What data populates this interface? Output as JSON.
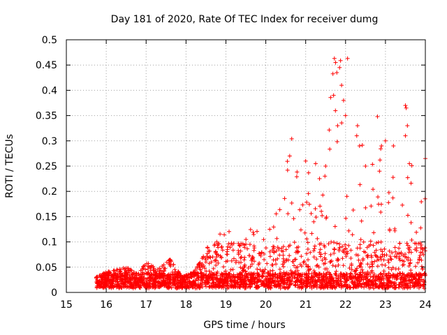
{
  "chart_data": {
    "type": "scatter",
    "title": "Day 181 of 2020, Rate Of TEC Index for receiver dumg",
    "xlabel": "GPS time / hours",
    "ylabel": "ROTI / TECUs",
    "xlim": [
      15,
      24
    ],
    "ylim": [
      0,
      0.5
    ],
    "xticks": [
      "15",
      "16",
      "17",
      "18",
      "19",
      "20",
      "21",
      "22",
      "23",
      "24"
    ],
    "yticks": [
      "0",
      "0.05",
      "0.1",
      "0.15",
      "0.2",
      "0.25",
      "0.3",
      "0.35",
      "0.4",
      "0.45",
      "0.5"
    ],
    "grid": true,
    "marker": "+",
    "color": "#ff0000",
    "series": [
      {
        "name": "ROTI",
        "envelope": [
          [
            15.75,
            0.03
          ],
          [
            16.0,
            0.04
          ],
          [
            16.3,
            0.045
          ],
          [
            16.5,
            0.05
          ],
          [
            16.8,
            0.035
          ],
          [
            17.0,
            0.06
          ],
          [
            17.3,
            0.045
          ],
          [
            17.6,
            0.065
          ],
          [
            17.9,
            0.03
          ],
          [
            18.2,
            0.04
          ],
          [
            18.5,
            0.08
          ],
          [
            18.7,
            0.13
          ],
          [
            19.0,
            0.15
          ],
          [
            19.3,
            0.1
          ],
          [
            19.6,
            0.13
          ],
          [
            20.0,
            0.15
          ],
          [
            20.3,
            0.16
          ],
          [
            20.6,
            0.3
          ],
          [
            20.9,
            0.23
          ],
          [
            21.2,
            0.25
          ],
          [
            21.5,
            0.27
          ],
          [
            21.7,
            0.46
          ],
          [
            22.0,
            0.46
          ],
          [
            22.3,
            0.33
          ],
          [
            22.6,
            0.25
          ],
          [
            22.8,
            0.35
          ],
          [
            23.0,
            0.3
          ],
          [
            23.3,
            0.2
          ],
          [
            23.5,
            0.37
          ],
          [
            23.8,
            0.18
          ],
          [
            24.0,
            0.26
          ]
        ],
        "points": [
          [
            21.72,
            0.463
          ],
          [
            21.75,
            0.455
          ],
          [
            21.78,
            0.435
          ],
          [
            21.85,
            0.445
          ],
          [
            22.05,
            0.463
          ],
          [
            21.7,
            0.39
          ],
          [
            21.9,
            0.41
          ],
          [
            21.95,
            0.38
          ],
          [
            22.0,
            0.35
          ],
          [
            21.8,
            0.33
          ],
          [
            22.3,
            0.33
          ],
          [
            22.28,
            0.31
          ],
          [
            22.35,
            0.29
          ],
          [
            22.8,
            0.348
          ],
          [
            23.5,
            0.37
          ],
          [
            23.52,
            0.365
          ],
          [
            23.55,
            0.33
          ],
          [
            23.5,
            0.31
          ],
          [
            23.0,
            0.3
          ],
          [
            23.2,
            0.29
          ],
          [
            22.9,
            0.29
          ],
          [
            20.65,
            0.304
          ],
          [
            20.6,
            0.27
          ],
          [
            24.0,
            0.265
          ],
          [
            23.6,
            0.255
          ],
          [
            21.0,
            0.26
          ],
          [
            21.25,
            0.255
          ],
          [
            21.5,
            0.25
          ],
          [
            22.5,
            0.25
          ],
          [
            22.85,
            0.24
          ]
        ]
      }
    ]
  }
}
